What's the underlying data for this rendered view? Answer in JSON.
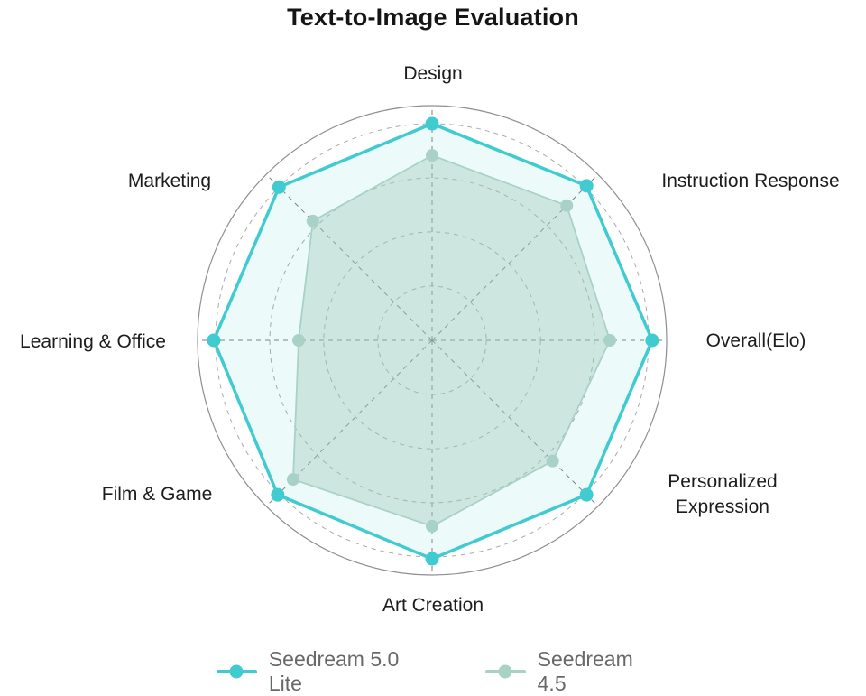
{
  "title": "Text-to-Image Evaluation",
  "chart_data": {
    "type": "radar",
    "categories": [
      "Design",
      "Instruction Response",
      "Overall(Elo)",
      "Personalized Expression",
      "Art Creation",
      "Film & Game",
      "Learning & Office",
      "Marketing"
    ],
    "axis_range": [
      0,
      1
    ],
    "ring_fractions": [
      0.231,
      0.462,
      0.692,
      0.923
    ],
    "grid": {
      "outer_circle_color": "#8f8f8f",
      "ring_color": "#aaaaaa",
      "spoke_color": "#7d7d7d",
      "style": "dashed"
    },
    "legend_position": "bottom",
    "series": [
      {
        "name": "Seedream 5.0 Lite",
        "color": "#40CBD0",
        "fill": "rgba(64,203,208,0.10)",
        "values": [
          0.923,
          0.931,
          0.938,
          0.931,
          0.931,
          0.931,
          0.931,
          0.923
        ]
      },
      {
        "name": "Seedream 4.5",
        "color": "#A9D2C6",
        "fill": "rgba(160,200,185,0.40)",
        "values": [
          0.788,
          0.812,
          0.758,
          0.727,
          0.792,
          0.838,
          0.569,
          0.719
        ]
      }
    ]
  }
}
